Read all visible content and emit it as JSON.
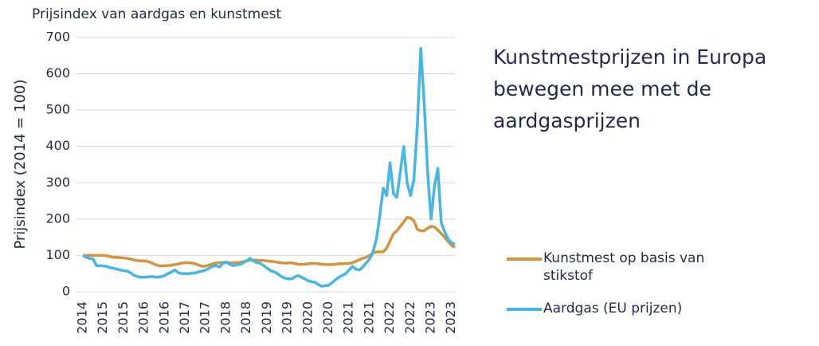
{
  "chart_data": {
    "type": "line",
    "title": "Prijsindex van aardgas en kunstmest",
    "y_label": "Prijsindex (2014 = 100)",
    "annotation": "Kunstmestprijzen in Europa bewegen mee met de aardgasprijzen",
    "categories": [
      "2014",
      null,
      null,
      null,
      null,
      null,
      "2015",
      null,
      null,
      null,
      null,
      null,
      "2015",
      null,
      null,
      null,
      null,
      null,
      "2016",
      null,
      null,
      null,
      null,
      null,
      "2016",
      null,
      null,
      null,
      null,
      null,
      "2017",
      null,
      null,
      null,
      null,
      null,
      "2017",
      null,
      null,
      null,
      null,
      null,
      "2018",
      null,
      null,
      null,
      null,
      null,
      "2018",
      null,
      null,
      null,
      null,
      null,
      "2019",
      null,
      null,
      null,
      null,
      null,
      "2019",
      null,
      null,
      null,
      null,
      null,
      "2020",
      null,
      null,
      null,
      null,
      null,
      "2020",
      null,
      null,
      null,
      null,
      null,
      "2021",
      null,
      null,
      null,
      null,
      null,
      "2021",
      null,
      null,
      null,
      null,
      null,
      "2022",
      null,
      null,
      null,
      null,
      null,
      "2022",
      null,
      null,
      null,
      null,
      null,
      "2023",
      null,
      null,
      null,
      null,
      null,
      "2023",
      null
    ],
    "series": [
      {
        "name": "Kunstmest op basis van stikstof",
        "color": "#d4943c",
        "values": [
          100,
          100,
          101,
          100,
          100,
          100,
          100,
          99,
          97,
          95,
          95,
          94,
          93,
          92,
          90,
          88,
          86,
          85,
          85,
          84,
          80,
          76,
          72,
          71,
          72,
          72,
          73,
          75,
          77,
          79,
          80,
          80,
          79,
          77,
          73,
          70,
          71,
          74,
          77,
          79,
          80,
          81,
          80,
          80,
          80,
          80,
          81,
          83,
          85,
          87,
          87,
          87,
          86,
          86,
          85,
          84,
          83,
          81,
          80,
          79,
          79,
          80,
          78,
          76,
          75,
          76,
          77,
          78,
          78,
          77,
          76,
          75,
          75,
          75,
          76,
          77,
          77,
          78,
          78,
          80,
          84,
          88,
          92,
          95,
          100,
          106,
          110,
          110,
          110,
          120,
          140,
          160,
          168,
          180,
          192,
          205,
          203,
          195,
          172,
          168,
          168,
          175,
          180,
          178,
          170,
          160,
          150,
          138,
          128,
          122
        ]
      },
      {
        "name": "Aardgas (EU prijzen)",
        "color": "#45b6e6",
        "values": [
          100,
          95,
          92,
          90,
          72,
          72,
          71,
          70,
          66,
          65,
          62,
          60,
          58,
          57,
          52,
          45,
          42,
          40,
          40,
          41,
          42,
          41,
          40,
          42,
          45,
          50,
          55,
          60,
          52,
          50,
          50,
          50,
          51,
          52,
          55,
          57,
          60,
          65,
          70,
          72,
          68,
          78,
          82,
          76,
          72,
          74,
          75,
          80,
          85,
          92,
          85,
          80,
          78,
          72,
          65,
          58,
          55,
          50,
          43,
          38,
          36,
          35,
          40,
          45,
          40,
          36,
          30,
          28,
          26,
          20,
          15,
          17,
          18,
          25,
          33,
          40,
          45,
          50,
          60,
          70,
          62,
          60,
          68,
          80,
          90,
          110,
          145,
          210,
          285,
          265,
          355,
          270,
          260,
          330,
          400,
          300,
          265,
          310,
          460,
          670,
          520,
          330,
          200,
          290,
          340,
          190,
          165,
          145,
          135,
          130
        ]
      }
    ],
    "ylim": [
      0,
      700
    ],
    "yticks": [
      0,
      100,
      200,
      300,
      400,
      500,
      600,
      700
    ],
    "grid": true,
    "legend": "right"
  }
}
